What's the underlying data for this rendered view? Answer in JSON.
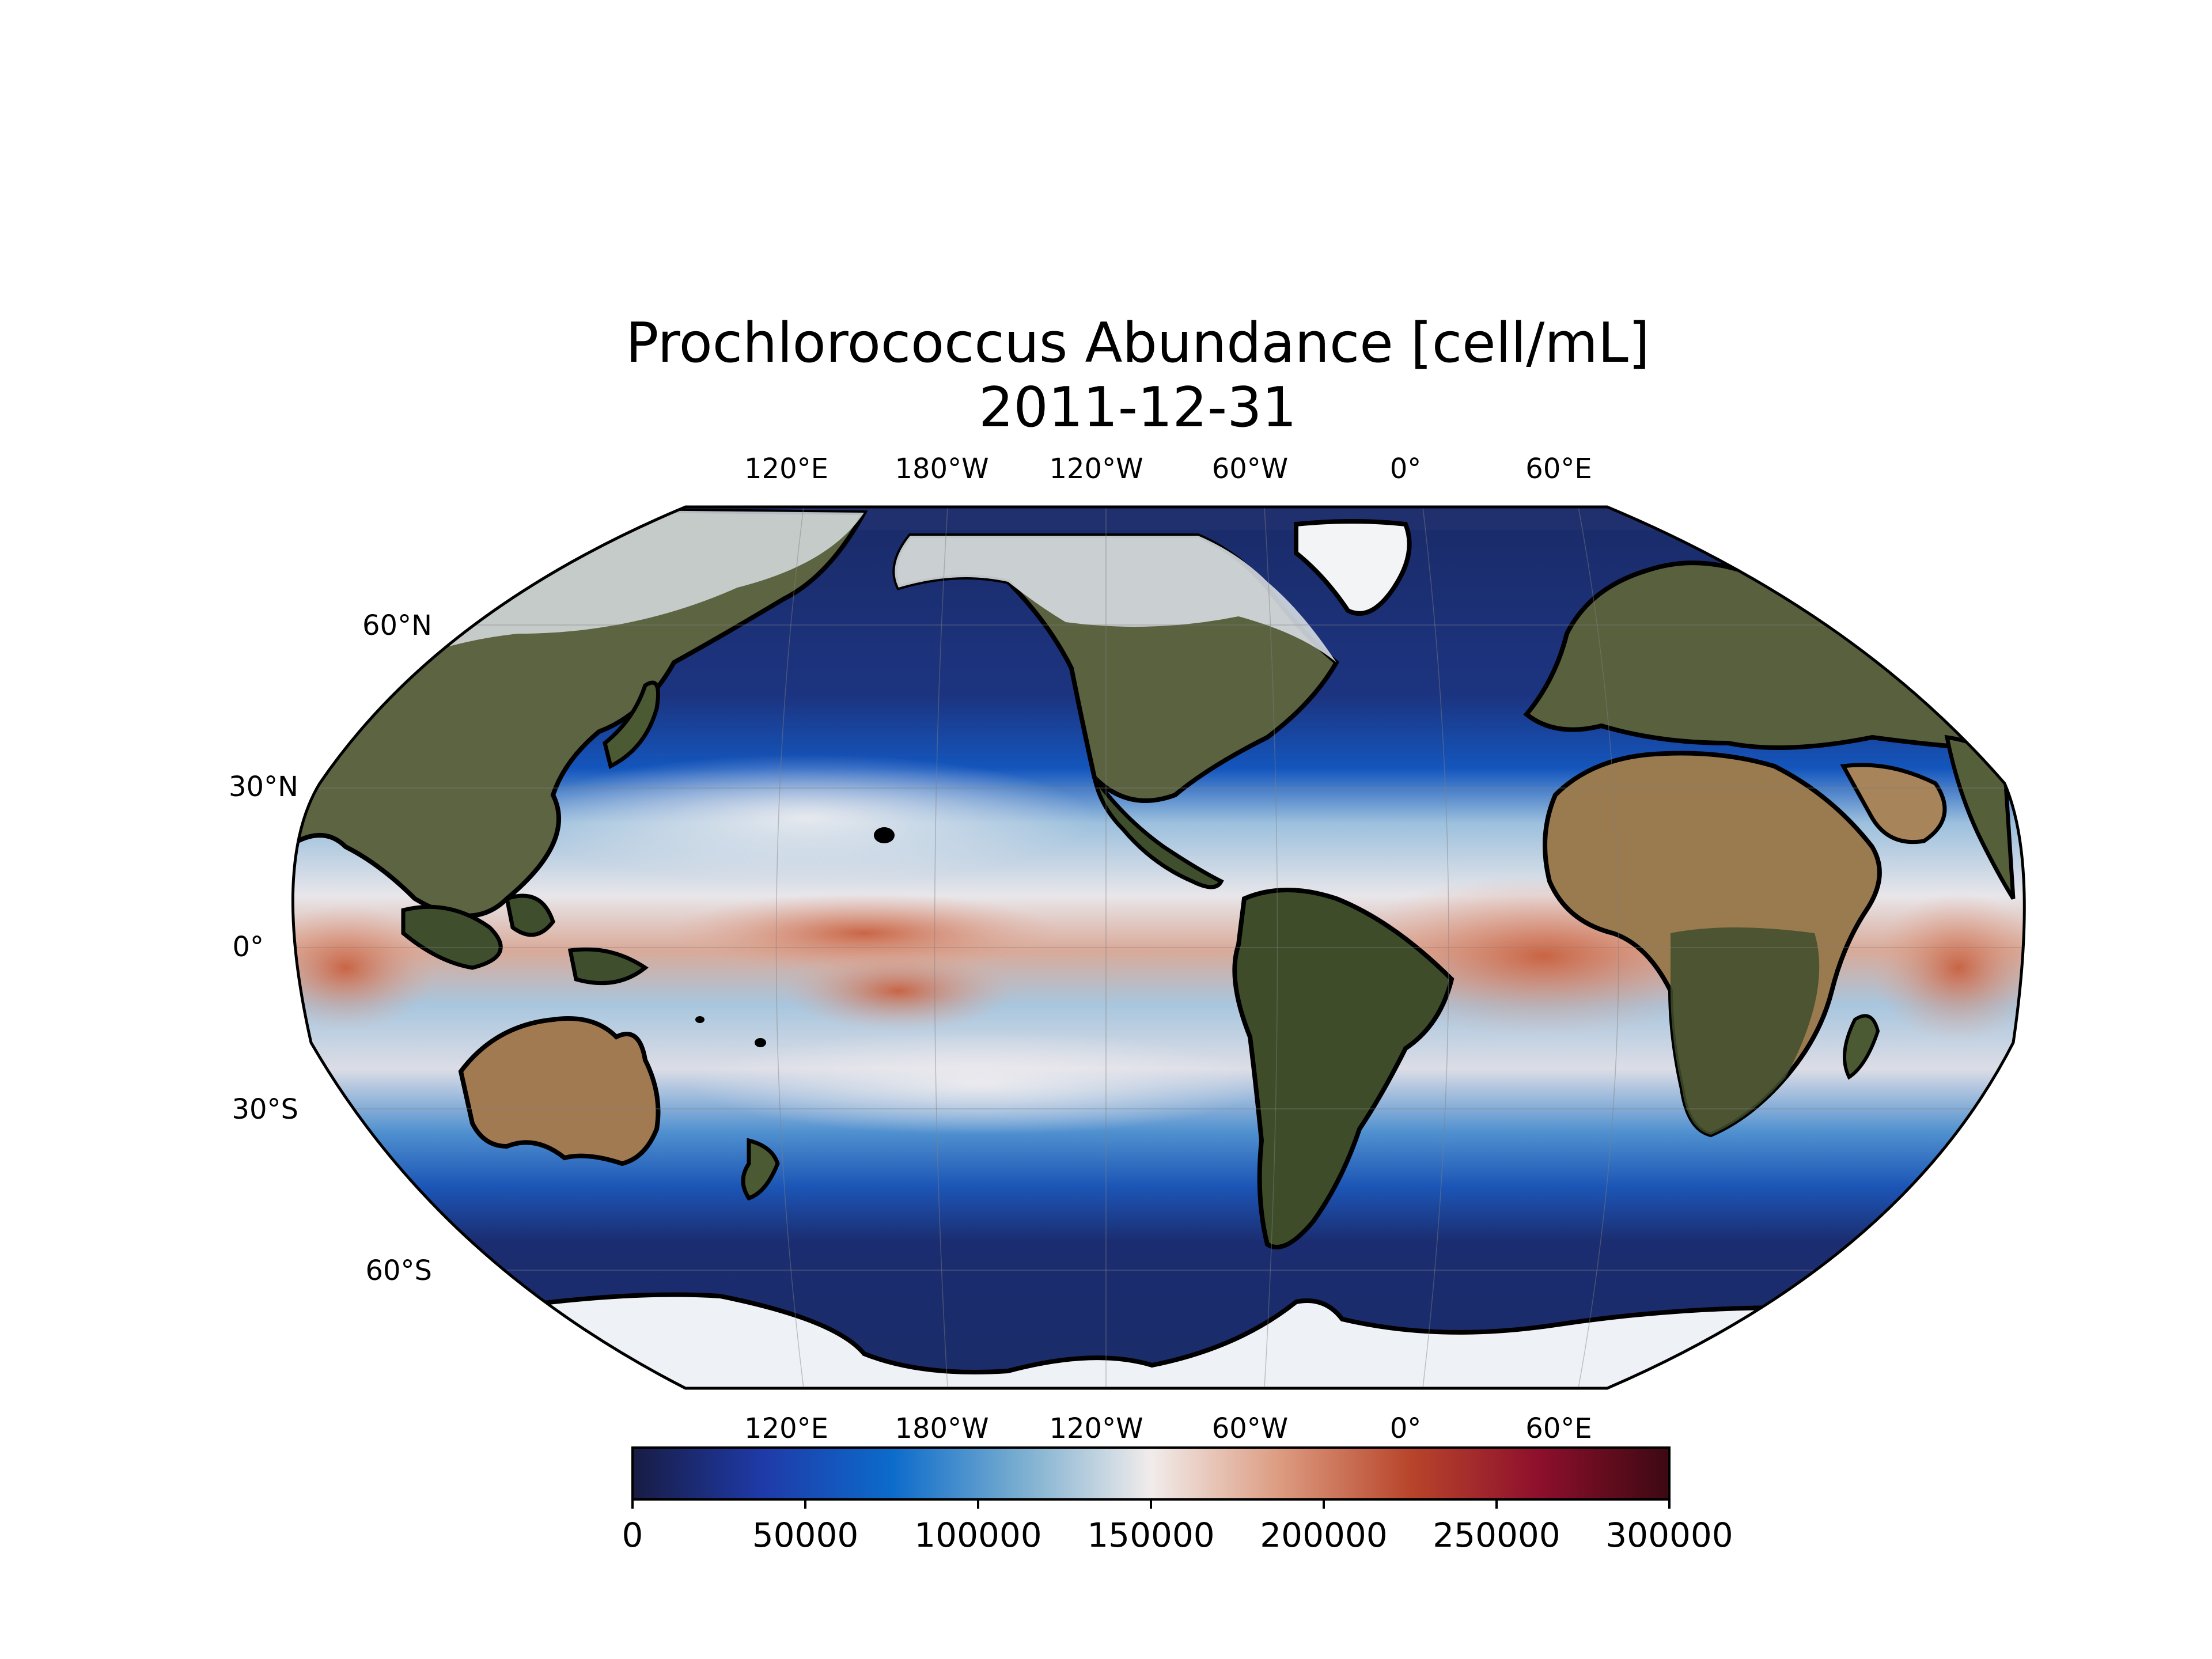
{
  "title": {
    "line1": "Prochlorococcus Abundance [cell/mL]",
    "line2": "2011-12-31"
  },
  "map": {
    "projection": "Robinson",
    "central_longitude": -150,
    "longitude_labels_top": [
      "120°E",
      "180°W",
      "120°W",
      "60°W",
      "0°",
      "60°E"
    ],
    "longitude_labels_bottom": [
      "120°E",
      "180°W",
      "120°W",
      "60°W",
      "0°",
      "60°E"
    ],
    "latitude_labels": [
      "60°N",
      "30°N",
      "0°",
      "30°S",
      "60°S"
    ],
    "gridlines": true,
    "coastlines": true
  },
  "colorbar": {
    "orientation": "horizontal",
    "colormap": "balance",
    "range": [
      0,
      300000
    ],
    "tick_values": [
      0,
      50000,
      100000,
      150000,
      200000,
      250000,
      300000
    ],
    "tick_labels": [
      "0",
      "50000",
      "100000",
      "150000",
      "200000",
      "250000",
      "300000"
    ],
    "colors": [
      "#181c43",
      "#1f3aa8",
      "#0c6bcb",
      "#7aaed0",
      "#f1eceb",
      "#dc9b80",
      "#b8452b",
      "#8d0f2c",
      "#3c0912"
    ]
  },
  "colors": {
    "ocean_low": "#1c2e6e",
    "ocean_mid": "#1558c0",
    "ocean_pale": "#cfe0ec",
    "ocean_high": "#d8826a",
    "land": "#4f5a33",
    "desert": "#b58c5a",
    "ice": "#eef2f6"
  }
}
